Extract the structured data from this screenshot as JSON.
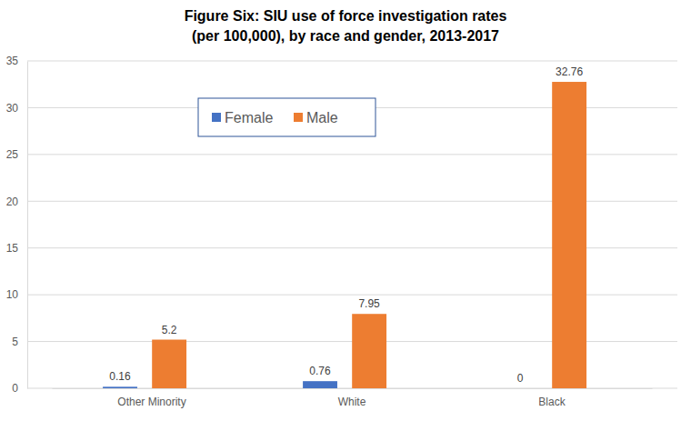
{
  "chart_data": {
    "type": "bar",
    "title": [
      "Figure Six: SIU use of force investigation rates",
      "(per 100,000), by race and gender, 2013-2017"
    ],
    "categories": [
      "Other Minority",
      "White",
      "Black"
    ],
    "series": [
      {
        "name": "Female",
        "color": "#4472c4",
        "values": [
          0.16,
          0.76,
          0
        ]
      },
      {
        "name": "Male",
        "color": "#ed7d31",
        "values": [
          5.2,
          7.95,
          32.76
        ]
      }
    ],
    "ylim": [
      0,
      35
    ],
    "yticks": [
      0,
      5,
      10,
      15,
      20,
      25,
      30,
      35
    ],
    "grid": true,
    "legend": "upper left",
    "data_labels": true
  }
}
